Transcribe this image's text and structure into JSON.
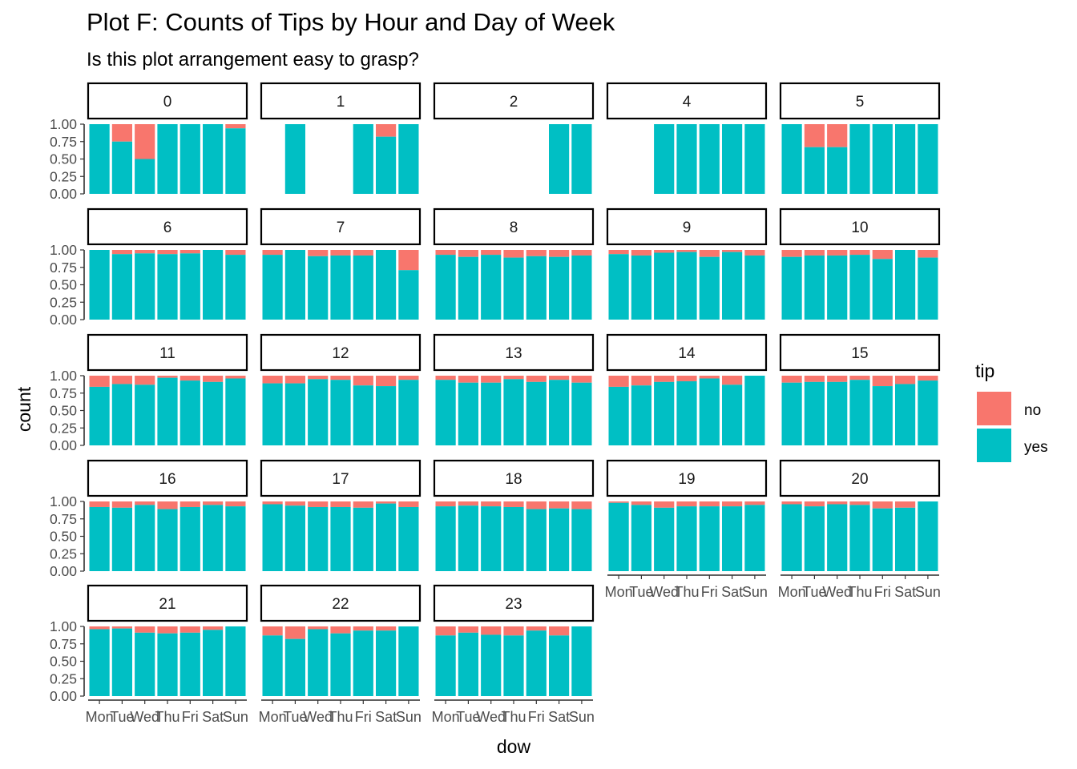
{
  "chart_data": {
    "type": "bar",
    "stacked": true,
    "title": "Plot F: Counts of Tips by Hour and Day of Week",
    "subtitle": "Is this plot arrangement easy to grasp?",
    "xlabel": "dow",
    "ylabel": "count",
    "ylim": [
      0,
      1
    ],
    "yticks": [
      "0.00",
      "0.25",
      "0.50",
      "0.75",
      "1.00"
    ],
    "categories": [
      "Mon",
      "Tue",
      "Wed",
      "Thu",
      "Fri",
      "Sat",
      "Sun"
    ],
    "legend": {
      "title": "tip",
      "position": "right",
      "entries": [
        {
          "label": "no",
          "color": "#F8766D"
        },
        {
          "label": "yes",
          "color": "#00BFC4"
        }
      ]
    },
    "grid": false,
    "facets": [
      {
        "label": "0",
        "yes": [
          1.0,
          0.75,
          0.5,
          1.0,
          1.0,
          1.0,
          0.94
        ]
      },
      {
        "label": "1",
        "yes": [
          null,
          1.0,
          null,
          null,
          1.0,
          0.82,
          1.0
        ]
      },
      {
        "label": "2",
        "yes": [
          null,
          null,
          null,
          null,
          null,
          1.0,
          1.0
        ]
      },
      {
        "label": "4",
        "yes": [
          null,
          null,
          1.0,
          1.0,
          1.0,
          1.0,
          1.0
        ]
      },
      {
        "label": "5",
        "yes": [
          1.0,
          0.67,
          0.67,
          1.0,
          1.0,
          1.0,
          1.0
        ]
      },
      {
        "label": "6",
        "yes": [
          1.0,
          0.94,
          0.95,
          0.94,
          0.95,
          1.0,
          0.93
        ]
      },
      {
        "label": "7",
        "yes": [
          0.93,
          1.0,
          0.91,
          0.92,
          0.92,
          1.0,
          0.71
        ]
      },
      {
        "label": "8",
        "yes": [
          0.93,
          0.9,
          0.93,
          0.89,
          0.91,
          0.9,
          0.92
        ]
      },
      {
        "label": "9",
        "yes": [
          0.94,
          0.92,
          0.96,
          0.97,
          0.9,
          0.97,
          0.92
        ]
      },
      {
        "label": "10",
        "yes": [
          0.9,
          0.92,
          0.92,
          0.93,
          0.87,
          1.0,
          0.89
        ]
      },
      {
        "label": "11",
        "yes": [
          0.84,
          0.88,
          0.87,
          0.97,
          0.93,
          0.91,
          0.96
        ]
      },
      {
        "label": "12",
        "yes": [
          0.89,
          0.89,
          0.95,
          0.94,
          0.86,
          0.85,
          0.94
        ]
      },
      {
        "label": "13",
        "yes": [
          0.94,
          0.9,
          0.9,
          0.95,
          0.91,
          0.94,
          0.9
        ]
      },
      {
        "label": "14",
        "yes": [
          0.84,
          0.86,
          0.91,
          0.92,
          0.96,
          0.87,
          1.0
        ]
      },
      {
        "label": "15",
        "yes": [
          0.9,
          0.91,
          0.91,
          0.94,
          0.85,
          0.88,
          0.93
        ]
      },
      {
        "label": "16",
        "yes": [
          0.92,
          0.91,
          0.95,
          0.89,
          0.92,
          0.95,
          0.93
        ]
      },
      {
        "label": "17",
        "yes": [
          0.96,
          0.94,
          0.92,
          0.92,
          0.91,
          0.97,
          0.92
        ]
      },
      {
        "label": "18",
        "yes": [
          0.93,
          0.94,
          0.93,
          0.92,
          0.89,
          0.9,
          0.89
        ]
      },
      {
        "label": "19",
        "yes": [
          0.98,
          0.95,
          0.91,
          0.93,
          0.93,
          0.93,
          0.95
        ]
      },
      {
        "label": "20",
        "yes": [
          0.96,
          0.93,
          0.96,
          0.95,
          0.9,
          0.91,
          1.0
        ]
      },
      {
        "label": "21",
        "yes": [
          0.96,
          0.97,
          0.91,
          0.9,
          0.91,
          0.95,
          1.0
        ]
      },
      {
        "label": "22",
        "yes": [
          0.87,
          0.82,
          0.96,
          0.9,
          0.94,
          0.94,
          1.0
        ]
      },
      {
        "label": "23",
        "yes": [
          0.87,
          0.91,
          0.88,
          0.87,
          0.94,
          0.87,
          1.0
        ]
      }
    ]
  }
}
